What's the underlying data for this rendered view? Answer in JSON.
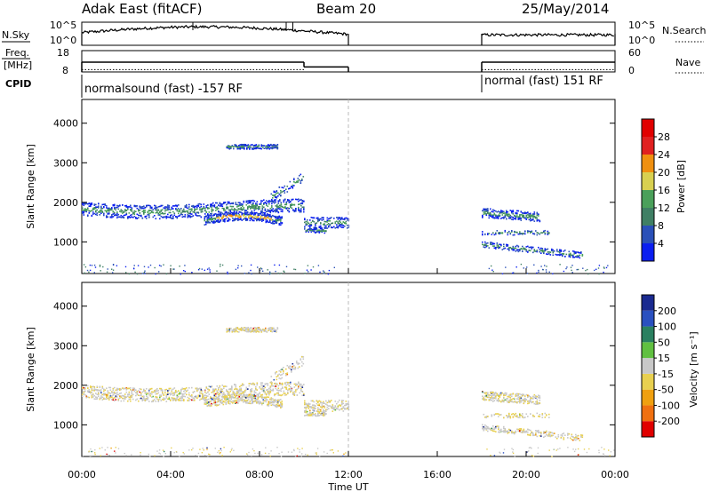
{
  "header": {
    "station": "Adak East (fitACF)",
    "beam": "Beam 20",
    "date": "25/May/2014"
  },
  "left_labels": {
    "nsky": "N.Sky",
    "freq_line1": "Freq.",
    "freq_line2": "[MHz]",
    "cpid": "CPID"
  },
  "right_labels": {
    "nsearch": "N.Search",
    "nave": "Nave"
  },
  "cpid_segments": [
    "normalsound (fast) -157 RF",
    "normal (fast) 151 RF"
  ],
  "chart_data": [
    {
      "type": "line",
      "name": "noise-panel",
      "ylabel": "N.Sky",
      "y_tick_labels": [
        "10^5",
        "10^0"
      ],
      "right_ylabel": "N.Search",
      "right_tick_labels": [
        "10^5",
        "10^0"
      ],
      "segments": [
        {
          "x_start_h": 0,
          "x_end_h": 12
        },
        {
          "x_start_h": 18,
          "x_end_h": 24
        }
      ]
    },
    {
      "type": "line",
      "name": "freq-nave-panel",
      "ylabel": "Freq. [MHz]",
      "y_ticks": [
        8,
        18
      ],
      "right_ylabel": "Nave",
      "right_ticks": [
        0,
        60
      ],
      "freq_segments": [
        {
          "x_start_h": 0,
          "x_end_h": 10,
          "value": 13.5
        },
        {
          "x_start_h": 10,
          "x_end_h": 12,
          "value": 10.8
        },
        {
          "x_start_h": 18,
          "x_end_h": 24,
          "value": 13.5
        }
      ],
      "nave_segments": [
        {
          "x_start_h": 0,
          "x_end_h": 10,
          "value": 20
        },
        {
          "x_start_h": 18,
          "x_end_h": 24,
          "value": 20
        }
      ]
    },
    {
      "type": "heatmap",
      "name": "power",
      "ylabel": "Slant Range [km]",
      "y_ticks": [
        1000,
        2000,
        3000,
        4000
      ],
      "ylim": [
        200,
        4600
      ],
      "colorbar_label": "Power [dB]",
      "colorbar_ticks": [
        "4",
        "8",
        "12",
        "16",
        "20",
        "24",
        "28"
      ],
      "colorbar_colors": [
        "#0a1ef0",
        "#2a50b8",
        "#3f7f64",
        "#4aa05a",
        "#d8d050",
        "#f09010",
        "#e02020",
        "#e00000"
      ]
    },
    {
      "type": "heatmap",
      "name": "velocity",
      "ylabel": "Slant Range [km]",
      "y_ticks": [
        1000,
        2000,
        3000,
        4000
      ],
      "ylim": [
        200,
        4600
      ],
      "colorbar_label": "Velocity [m s⁻¹]",
      "colorbar_ticks": [
        "200",
        "100",
        "50",
        "15",
        "-15",
        "-50",
        "-100",
        "-200"
      ],
      "colorbar_colors": [
        "#1a2a90",
        "#2a50c0",
        "#2a8060",
        "#60c040",
        "#c8c8c8",
        "#e8d050",
        "#f0a010",
        "#f07010",
        "#e00000"
      ]
    }
  ],
  "x_axis": {
    "tick_labels": [
      "00:00",
      "04:00",
      "08:00",
      "12:00",
      "16:00",
      "20:00",
      "00:00"
    ],
    "label": "Time UT",
    "range_h": [
      0,
      24
    ]
  }
}
